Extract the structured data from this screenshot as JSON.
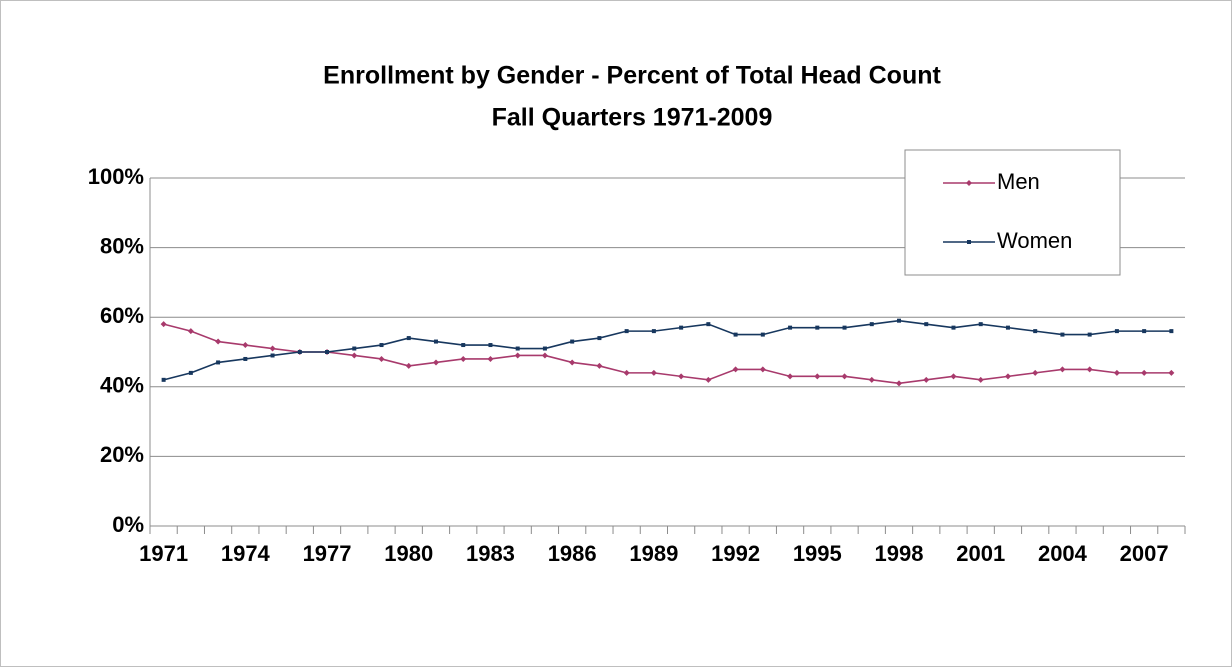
{
  "chart_data": {
    "type": "line",
    "title": "Enrollment by Gender - Percent of Total Head Count",
    "subtitle": "Fall Quarters 1971-2009",
    "categories": [
      "1971",
      null,
      null,
      "1974",
      null,
      null,
      "1977",
      null,
      null,
      "1980",
      null,
      null,
      "1983",
      null,
      null,
      "1986",
      null,
      null,
      "1989",
      null,
      null,
      "1992",
      null,
      null,
      "1995",
      null,
      null,
      "1998",
      null,
      null,
      "2001",
      null,
      null,
      "2004",
      null,
      null,
      "2007",
      null
    ],
    "series": [
      {
        "name": "Men",
        "color": "#a83a6c",
        "values": [
          58,
          56,
          53,
          52,
          51,
          50,
          50,
          49,
          48,
          46,
          47,
          48,
          48,
          49,
          49,
          47,
          46,
          44,
          44,
          43,
          42,
          45,
          45,
          43,
          43,
          43,
          42,
          41,
          42,
          43,
          42,
          43,
          44,
          45,
          45,
          44,
          44,
          44
        ]
      },
      {
        "name": "Women",
        "color": "#17375e",
        "values": [
          42,
          44,
          47,
          48,
          49,
          50,
          50,
          51,
          52,
          54,
          53,
          52,
          52,
          51,
          51,
          53,
          54,
          56,
          56,
          57,
          58,
          55,
          55,
          57,
          57,
          57,
          58,
          59,
          58,
          57,
          58,
          57,
          56,
          55,
          55,
          56,
          56,
          56
        ]
      }
    ],
    "ylim": [
      0,
      100
    ],
    "yticks": [
      {
        "value": 0,
        "label": "0%"
      },
      {
        "value": 20,
        "label": "20%"
      },
      {
        "value": 40,
        "label": "40%"
      },
      {
        "value": 60,
        "label": "60%"
      },
      {
        "value": 80,
        "label": "80%"
      },
      {
        "value": 100,
        "label": "100%"
      }
    ],
    "grid": true,
    "legend": "top-right"
  }
}
